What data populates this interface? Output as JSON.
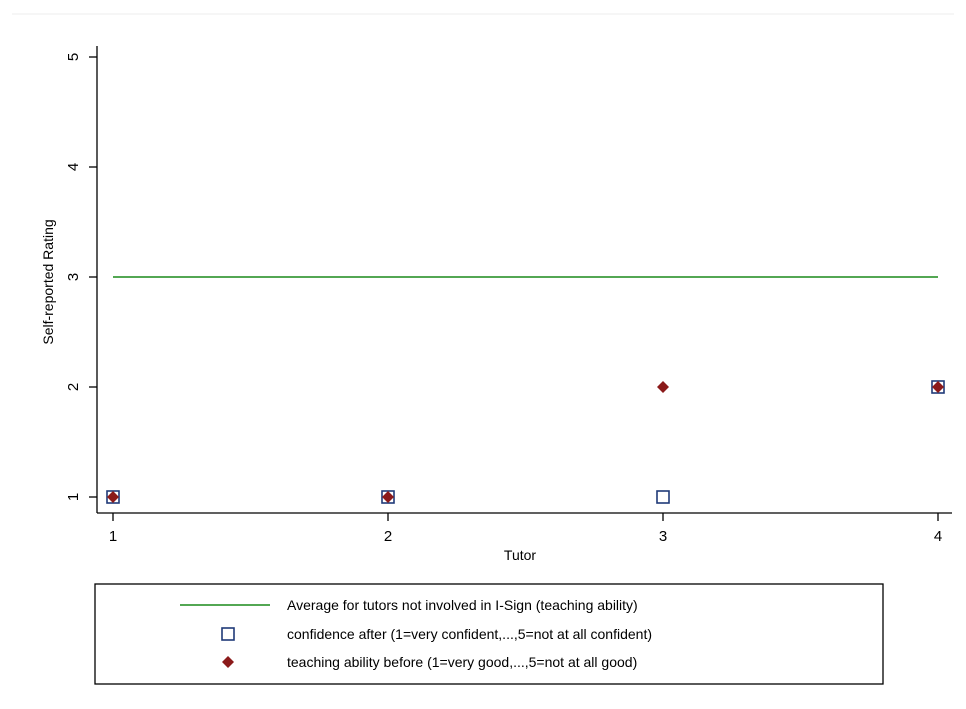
{
  "chart_data": {
    "type": "scatter",
    "title": "",
    "xlabel": "Tutor",
    "ylabel": "Self-reported Rating",
    "xlim": [
      1,
      4
    ],
    "ylim": [
      1,
      5
    ],
    "xticks": [
      1,
      2,
      3,
      4
    ],
    "yticks": [
      1,
      2,
      3,
      4,
      5
    ],
    "grid": false,
    "legend_position": "bottom",
    "series": [
      {
        "name": "Average for tutors not involved in I-Sign (teaching ability)",
        "kind": "line",
        "color": "#1a8a1a",
        "x": [
          1,
          4
        ],
        "y": [
          3,
          3
        ]
      },
      {
        "name": "confidence after (1=very confident,...,5=not at all confident)",
        "kind": "hollow-square",
        "color": "#1f3a78",
        "x": [
          1,
          2,
          3,
          4
        ],
        "y": [
          1,
          1,
          1,
          2
        ]
      },
      {
        "name": "teaching ability before (1=very good,...,5=not at all good)",
        "kind": "diamond",
        "color": "#8b1a1a",
        "x": [
          1,
          2,
          3,
          4
        ],
        "y": [
          1,
          1,
          2,
          2
        ]
      }
    ]
  }
}
